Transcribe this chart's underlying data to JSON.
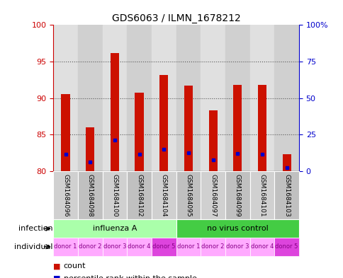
{
  "title": "GDS6063 / ILMN_1678212",
  "samples": [
    "GSM1684096",
    "GSM1684098",
    "GSM1684100",
    "GSM1684102",
    "GSM1684104",
    "GSM1684095",
    "GSM1684097",
    "GSM1684099",
    "GSM1684101",
    "GSM1684103"
  ],
  "red_values": [
    90.5,
    86.0,
    96.2,
    90.7,
    93.2,
    91.7,
    88.3,
    91.8,
    91.8,
    82.3
  ],
  "blue_values": [
    82.3,
    81.2,
    84.2,
    82.3,
    83.0,
    82.5,
    81.5,
    82.4,
    82.3,
    80.5
  ],
  "ylim": [
    80,
    100
  ],
  "yticks_left": [
    80,
    85,
    90,
    95,
    100
  ],
  "right_tick_labels": [
    "0",
    "25",
    "50",
    "75",
    "100%"
  ],
  "right_tick_positions": [
    80,
    85,
    90,
    95,
    100
  ],
  "groups": [
    {
      "label": "influenza A",
      "start": 0,
      "end": 5,
      "color": "#aaffaa"
    },
    {
      "label": "no virus control",
      "start": 5,
      "end": 10,
      "color": "#44cc44"
    }
  ],
  "individuals": [
    "donor 1",
    "donor 2",
    "donor 3",
    "donor 4",
    "donor 5",
    "donor 1",
    "donor 2",
    "donor 3",
    "donor 4",
    "donor 5"
  ],
  "ind_colors": [
    "#ffaaff",
    "#ffaaff",
    "#ffaaff",
    "#ffaaff",
    "#dd44dd",
    "#ffaaff",
    "#ffaaff",
    "#ffaaff",
    "#ffaaff",
    "#dd44dd"
  ],
  "bar_color": "#cc1100",
  "blue_color": "#0000cc",
  "axis_left_color": "#cc0000",
  "axis_right_color": "#0000cc",
  "background_color": "#ffffff",
  "bar_width": 0.35,
  "sample_box_color": "#c8c8c8",
  "grid_color": "#555555"
}
